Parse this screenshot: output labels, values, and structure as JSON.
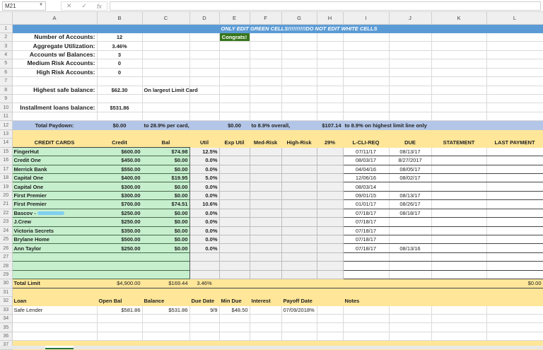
{
  "formula_bar": {
    "cell_ref": "M21",
    "fx_label": "fx",
    "cancel_icon": "✕",
    "confirm_icon": "✓",
    "value": ""
  },
  "columns": [
    "A",
    "B",
    "C",
    "D",
    "E",
    "F",
    "G",
    "H",
    "I",
    "J",
    "K",
    "L"
  ],
  "banner": "ONLY EDIT GREEN CELLS!!!!!!!!!!DO NOT EDIT WHITE CELLS",
  "congrats": "Congrats!",
  "summary": [
    {
      "label": "Number of Accounts:",
      "value": "12"
    },
    {
      "label": "Aggregate Utilization:",
      "value": "3.46%"
    },
    {
      "label": "Accounts w/ Balances:",
      "value": "3"
    },
    {
      "label": "Medium Risk Accounts:",
      "value": "0"
    },
    {
      "label": "High Risk Accounts:",
      "value": "0"
    }
  ],
  "highest_safe": {
    "label": "Highest safe balance:",
    "value": "$62.30",
    "note": "On largest Limit Card"
  },
  "installment": {
    "label": "Installment loans balance:",
    "value": "$531.86"
  },
  "paydown": {
    "label": "Total Paydown:",
    "v1": "$0.00",
    "t1": "to 28.9% per card,",
    "v2": "$0.00",
    "t2": "to 8.9% overall,",
    "v3": "$107.14",
    "t3": "to 8.9% on highest limit line only"
  },
  "cards_header": [
    "CREDIT CARDS",
    "Credit",
    "Bal",
    "Util",
    "Exp Util",
    "Med-Risk",
    "High-Risk",
    "29%",
    "L-CLI-REQ",
    "DUE",
    "STATEMENT",
    "LAST PAYMENT"
  ],
  "cards": [
    {
      "name": "FingerHut",
      "credit": "$600.00",
      "bal": "$74.98",
      "util": "12.5%",
      "lcli": "07/11/17",
      "due": "08/13/17"
    },
    {
      "name": "Credit One",
      "credit": "$450.00",
      "bal": "$0.00",
      "util": "0.0%",
      "lcli": "08/03/17",
      "due": "8/27/2017"
    },
    {
      "name": "Merrick Bank",
      "credit": "$550.00",
      "bal": "$0.00",
      "util": "0.0%",
      "lcli": "04/04/16",
      "due": "08/05/17"
    },
    {
      "name": "Capital One",
      "credit": "$400.00",
      "bal": "$19.95",
      "util": "5.0%",
      "lcli": "12/06/16",
      "due": "08/02/17"
    },
    {
      "name": "Capital One",
      "credit": "$300.00",
      "bal": "$0.00",
      "util": "0.0%",
      "lcli": "08/03/14",
      "due": ""
    },
    {
      "name": "First Premier",
      "credit": "$300.00",
      "bal": "$0.00",
      "util": "0.0%",
      "lcli": "09/01/15",
      "due": "08/13/17"
    },
    {
      "name": "First Premier",
      "credit": "$700.00",
      "bal": "$74.51",
      "util": "10.6%",
      "lcli": "01/01/17",
      "due": "08/26/17"
    },
    {
      "name": "Bascov -",
      "credit": "$250.00",
      "bal": "$0.00",
      "util": "0.0%",
      "lcli": "07/18/17",
      "due": "08/18/17"
    },
    {
      "name": "J.Crew",
      "credit": "$250.00",
      "bal": "$0.00",
      "util": "0.0%",
      "lcli": "07/18/17",
      "due": ""
    },
    {
      "name": "Victoria Secrets",
      "credit": "$350.00",
      "bal": "$0.00",
      "util": "0.0%",
      "lcli": "07/18/17",
      "due": ""
    },
    {
      "name": "Brylane Home",
      "credit": "$500.00",
      "bal": "$0.00",
      "util": "0.0%",
      "lcli": "07/18/17",
      "due": ""
    },
    {
      "name": "Ann Taylor",
      "credit": "$250.00",
      "bal": "$0.00",
      "util": "0.0%",
      "lcli": "07/18/17",
      "due": "08/13/16"
    }
  ],
  "totals": {
    "label": "Total Limit",
    "credit": "$4,900.00",
    "bal": "$169.44",
    "util": "3.46%",
    "last_payment": "$0.00"
  },
  "loans_header": [
    "Loan",
    "Open Bal",
    "Balance",
    "Due Date",
    "Min Due",
    "Interest",
    "Payoff Date",
    "Notes"
  ],
  "loans": [
    {
      "name": "Safe Lender",
      "open_bal": "$581.86",
      "balance": "$531.86",
      "due_date": "9/9",
      "min_due": "$48.50",
      "interest": "",
      "payoff": "07/09/2018%",
      "notes": ""
    }
  ],
  "colors": {
    "banner": "#5b9bd5",
    "paydown": "#b4c6e7",
    "header": "#ffe699",
    "editable": "#c6efce",
    "congrats": "#38761d"
  }
}
